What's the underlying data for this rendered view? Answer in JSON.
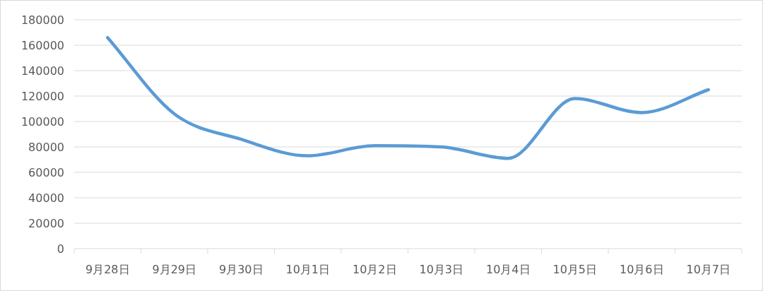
{
  "chart_data": {
    "type": "line",
    "categories": [
      "9月28日",
      "9月29日",
      "9月30日",
      "10月1日",
      "10月2日",
      "10月3日",
      "10月4日",
      "10月5日",
      "10月6日",
      "10月7日"
    ],
    "series": [
      {
        "color": "#5b9bd5",
        "values": [
          166000,
          106000,
          86000,
          73000,
          81000,
          80000,
          71000,
          118000,
          107000,
          125000
        ]
      }
    ],
    "ylim": [
      0,
      180000
    ],
    "yticks": [
      0,
      20000,
      40000,
      60000,
      80000,
      100000,
      120000,
      140000,
      160000,
      180000
    ],
    "grid": "y"
  }
}
